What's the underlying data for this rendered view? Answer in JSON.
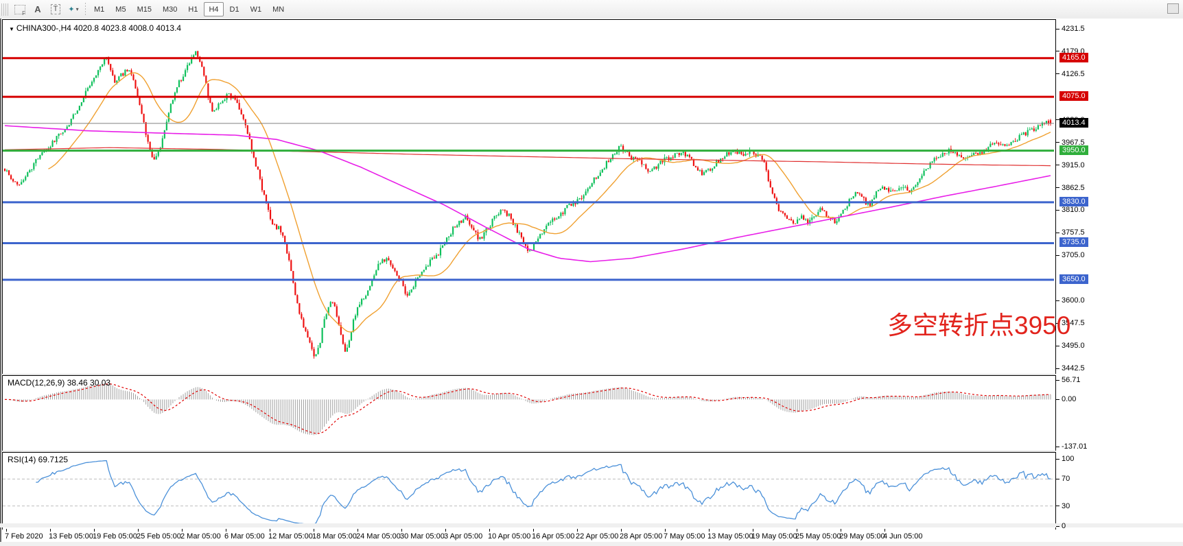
{
  "toolbar": {
    "tools": [
      {
        "name": "templates",
        "label": "F"
      },
      {
        "name": "insert-text",
        "label": "A"
      },
      {
        "name": "text-label",
        "label": "T"
      },
      {
        "name": "objects",
        "label": "✦",
        "caret": "▾"
      }
    ],
    "timeframes": [
      "M1",
      "M5",
      "M15",
      "M30",
      "H1",
      "H4",
      "D1",
      "W1",
      "MN"
    ],
    "active_timeframe": "H4"
  },
  "window": {
    "dropdown_marker": "▼",
    "symbol_header": "CHINA300-,H4  4020.8 4023.8 4008.0 4013.4"
  },
  "annotation": {
    "text": "多空转折点3950",
    "color": "#e2241d"
  },
  "indicators": {
    "macd": {
      "label": "MACD(12,26,9) 38.46 30.03",
      "fast": 12,
      "slow": 26,
      "signal_period": 9,
      "value": 38.46,
      "signal_value": 30.03,
      "scale": [
        {
          "v": 56.71,
          "t": "56.71"
        },
        {
          "v": 0,
          "t": "0.00"
        },
        {
          "v": -137.01,
          "t": "-137.01"
        }
      ]
    },
    "rsi": {
      "label": "RSI(14) 69.7125",
      "period": 14,
      "value": 69.7125,
      "levels": [
        70,
        30
      ],
      "scale": [
        {
          "v": 100,
          "t": "100"
        },
        {
          "v": 70,
          "t": "70"
        },
        {
          "v": 30,
          "t": "30"
        },
        {
          "v": 0,
          "t": "0"
        }
      ]
    }
  },
  "price_axis": {
    "plain_ticks": [
      "4231.5",
      "4179.0",
      "4126.5",
      "4020.0",
      "3967.5",
      "3915.0",
      "3862.5",
      "3810.0",
      "3757.5",
      "3705.0",
      "3600.0",
      "3547.5",
      "3495.0",
      "3442.5"
    ]
  },
  "hlines": [
    {
      "price": 4165.0,
      "label": "4165.0",
      "color": "#d60000"
    },
    {
      "price": 4075.0,
      "label": "4075.0",
      "color": "#d60000"
    },
    {
      "price": 3950.0,
      "label": "3950.0",
      "color": "#2fae3b"
    },
    {
      "price": 3830.0,
      "label": "3830.0",
      "color": "#3c64cd"
    },
    {
      "price": 3735.0,
      "label": "3735.0",
      "color": "#3c64cd"
    },
    {
      "price": 3650.0,
      "label": "3650.0",
      "color": "#3c64cd"
    }
  ],
  "current_price": {
    "value": 4013.4,
    "label": "4013.4"
  },
  "time_axis": [
    "7 Feb 2020",
    "13 Feb 05:00",
    "19 Feb 05:00",
    "25 Feb 05:00",
    "2 Mar 05:00",
    "6 Mar 05:00",
    "12 Mar 05:00",
    "18 Mar 05:00",
    "24 Mar 05:00",
    "30 Mar 05:00",
    "3 Apr 05:00",
    "10 Apr 05:00",
    "16 Apr 05:00",
    "22 Apr 05:00",
    "28 Apr 05:00",
    "7 May 05:00",
    "13 May 05:00",
    "19 May 05:00",
    "25 May 05:00",
    "29 May 05:00",
    "4 Jun 05:00"
  ],
  "chart_data": {
    "type": "candlestick",
    "symbol": "CHINA300-",
    "timeframe": "H4",
    "last_bar": {
      "open": 4020.8,
      "high": 4023.8,
      "low": 4008.0,
      "close": 4013.4
    },
    "bar_count": 505,
    "y_range": [
      3442.5,
      4231.5
    ],
    "y_tick_step": 52.5,
    "levels": [
      4165,
      4075,
      3950,
      3830,
      3735,
      3650
    ],
    "price_path": [
      [
        0,
        3905
      ],
      [
        0.008,
        3882
      ],
      [
        0.015,
        3868
      ],
      [
        0.022,
        3895
      ],
      [
        0.03,
        3928
      ],
      [
        0.04,
        3955
      ],
      [
        0.05,
        3980
      ],
      [
        0.06,
        4005
      ],
      [
        0.068,
        4040
      ],
      [
        0.076,
        4078
      ],
      [
        0.084,
        4112
      ],
      [
        0.09,
        4140
      ],
      [
        0.096,
        4168
      ],
      [
        0.1,
        4150
      ],
      [
        0.105,
        4112
      ],
      [
        0.112,
        4128
      ],
      [
        0.118,
        4138
      ],
      [
        0.124,
        4108
      ],
      [
        0.13,
        4048
      ],
      [
        0.136,
        3978
      ],
      [
        0.142,
        3922
      ],
      [
        0.147,
        3945
      ],
      [
        0.153,
        4000
      ],
      [
        0.159,
        4058
      ],
      [
        0.165,
        4100
      ],
      [
        0.172,
        4132
      ],
      [
        0.178,
        4158
      ],
      [
        0.183,
        4180
      ],
      [
        0.187,
        4160
      ],
      [
        0.191,
        4122
      ],
      [
        0.196,
        4058
      ],
      [
        0.2,
        4038
      ],
      [
        0.207,
        4065
      ],
      [
        0.214,
        4080
      ],
      [
        0.221,
        4068
      ],
      [
        0.227,
        4035
      ],
      [
        0.232,
        3992
      ],
      [
        0.237,
        3942
      ],
      [
        0.242,
        3902
      ],
      [
        0.247,
        3852
      ],
      [
        0.252,
        3808
      ],
      [
        0.257,
        3778
      ],
      [
        0.263,
        3768
      ],
      [
        0.268,
        3735
      ],
      [
        0.274,
        3668
      ],
      [
        0.28,
        3588
      ],
      [
        0.286,
        3535
      ],
      [
        0.291,
        3505
      ],
      [
        0.296,
        3472
      ],
      [
        0.3,
        3488
      ],
      [
        0.305,
        3552
      ],
      [
        0.311,
        3600
      ],
      [
        0.316,
        3585
      ],
      [
        0.321,
        3520
      ],
      [
        0.326,
        3478
      ],
      [
        0.331,
        3530
      ],
      [
        0.337,
        3588
      ],
      [
        0.344,
        3608
      ],
      [
        0.351,
        3650
      ],
      [
        0.358,
        3690
      ],
      [
        0.365,
        3700
      ],
      [
        0.372,
        3675
      ],
      [
        0.379,
        3645
      ],
      [
        0.385,
        3612
      ],
      [
        0.392,
        3642
      ],
      [
        0.4,
        3675
      ],
      [
        0.408,
        3695
      ],
      [
        0.416,
        3715
      ],
      [
        0.424,
        3752
      ],
      [
        0.432,
        3780
      ],
      [
        0.44,
        3795
      ],
      [
        0.448,
        3768
      ],
      [
        0.454,
        3742
      ],
      [
        0.461,
        3768
      ],
      [
        0.468,
        3792
      ],
      [
        0.475,
        3815
      ],
      [
        0.482,
        3800
      ],
      [
        0.489,
        3768
      ],
      [
        0.496,
        3738
      ],
      [
        0.502,
        3715
      ],
      [
        0.508,
        3738
      ],
      [
        0.515,
        3765
      ],
      [
        0.523,
        3785
      ],
      [
        0.531,
        3800
      ],
      [
        0.539,
        3822
      ],
      [
        0.546,
        3830
      ],
      [
        0.553,
        3845
      ],
      [
        0.561,
        3875
      ],
      [
        0.569,
        3902
      ],
      [
        0.577,
        3925
      ],
      [
        0.584,
        3950
      ],
      [
        0.589,
        3960
      ],
      [
        0.594,
        3945
      ],
      [
        0.601,
        3930
      ],
      [
        0.609,
        3920
      ],
      [
        0.616,
        3902
      ],
      [
        0.622,
        3912
      ],
      [
        0.63,
        3928
      ],
      [
        0.638,
        3935
      ],
      [
        0.646,
        3945
      ],
      [
        0.653,
        3940
      ],
      [
        0.66,
        3915
      ],
      [
        0.667,
        3895
      ],
      [
        0.674,
        3908
      ],
      [
        0.682,
        3926
      ],
      [
        0.69,
        3940
      ],
      [
        0.698,
        3950
      ],
      [
        0.705,
        3942
      ],
      [
        0.712,
        3948
      ],
      [
        0.719,
        3940
      ],
      [
        0.725,
        3930
      ],
      [
        0.729,
        3895
      ],
      [
        0.734,
        3848
      ],
      [
        0.74,
        3815
      ],
      [
        0.747,
        3795
      ],
      [
        0.754,
        3778
      ],
      [
        0.761,
        3798
      ],
      [
        0.768,
        3786
      ],
      [
        0.775,
        3802
      ],
      [
        0.781,
        3818
      ],
      [
        0.788,
        3795
      ],
      [
        0.794,
        3786
      ],
      [
        0.801,
        3810
      ],
      [
        0.808,
        3835
      ],
      [
        0.814,
        3855
      ],
      [
        0.82,
        3838
      ],
      [
        0.827,
        3822
      ],
      [
        0.833,
        3850
      ],
      [
        0.84,
        3865
      ],
      [
        0.846,
        3852
      ],
      [
        0.853,
        3862
      ],
      [
        0.859,
        3868
      ],
      [
        0.866,
        3856
      ],
      [
        0.872,
        3874
      ],
      [
        0.879,
        3900
      ],
      [
        0.885,
        3920
      ],
      [
        0.892,
        3934
      ],
      [
        0.898,
        3944
      ],
      [
        0.905,
        3950
      ],
      [
        0.911,
        3940
      ],
      [
        0.918,
        3935
      ],
      [
        0.924,
        3944
      ],
      [
        0.931,
        3938
      ],
      [
        0.937,
        3954
      ],
      [
        0.944,
        3964
      ],
      [
        0.95,
        3970
      ],
      [
        0.956,
        3958
      ],
      [
        0.963,
        3974
      ],
      [
        0.97,
        3980
      ],
      [
        0.976,
        3990
      ],
      [
        0.983,
        4000
      ],
      [
        0.99,
        4010
      ],
      [
        0.996,
        4018
      ],
      [
        1,
        4013.4
      ]
    ],
    "ma_magenta": [
      [
        0,
        4008
      ],
      [
        0.08,
        3996
      ],
      [
        0.16,
        3990
      ],
      [
        0.22,
        3986
      ],
      [
        0.26,
        3976
      ],
      [
        0.3,
        3950
      ],
      [
        0.34,
        3912
      ],
      [
        0.38,
        3868
      ],
      [
        0.42,
        3824
      ],
      [
        0.46,
        3772
      ],
      [
        0.5,
        3722
      ],
      [
        0.53,
        3700
      ],
      [
        0.56,
        3692
      ],
      [
        0.6,
        3700
      ],
      [
        0.65,
        3722
      ],
      [
        0.7,
        3748
      ],
      [
        0.75,
        3772
      ],
      [
        0.8,
        3796
      ],
      [
        0.85,
        3820
      ],
      [
        0.9,
        3845
      ],
      [
        0.95,
        3868
      ],
      [
        1,
        3892
      ]
    ],
    "ma_red": [
      [
        0,
        3952
      ],
      [
        0.1,
        3957
      ],
      [
        0.2,
        3953
      ],
      [
        0.3,
        3947
      ],
      [
        0.4,
        3941
      ],
      [
        0.5,
        3936
      ],
      [
        0.6,
        3931
      ],
      [
        0.7,
        3927
      ],
      [
        0.78,
        3924
      ],
      [
        0.86,
        3920
      ],
      [
        0.93,
        3917
      ],
      [
        1,
        3915
      ]
    ],
    "colors": {
      "bull": "#0fc05c",
      "bear": "#ee1111",
      "ma_fast_orange": "#f0a030",
      "ma_mid_magenta": "#e81ee8",
      "ma_slow_red": "#e03030",
      "rsi_line": "#4a90d9",
      "macd_hist": "#9f9f9f",
      "macd_signal": "#e00000",
      "current_price_line": "#808080"
    }
  }
}
